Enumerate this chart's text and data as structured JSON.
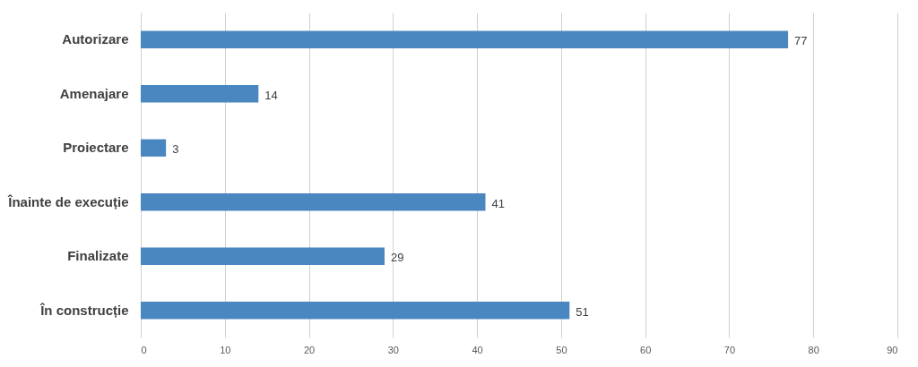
{
  "chart_data": {
    "type": "bar",
    "orientation": "horizontal",
    "categories": [
      "Autorizare",
      "Amenajare",
      "Proiectare",
      "Înainte de execuție",
      "Finalizate",
      "În construcție"
    ],
    "values": [
      77,
      14,
      3,
      41,
      29,
      51
    ],
    "color": "#4a86c0",
    "xlim": [
      0,
      90
    ],
    "xticks": [
      0,
      10,
      20,
      30,
      40,
      50,
      60,
      70,
      80,
      90
    ],
    "grid": "x",
    "data_labels": true
  }
}
